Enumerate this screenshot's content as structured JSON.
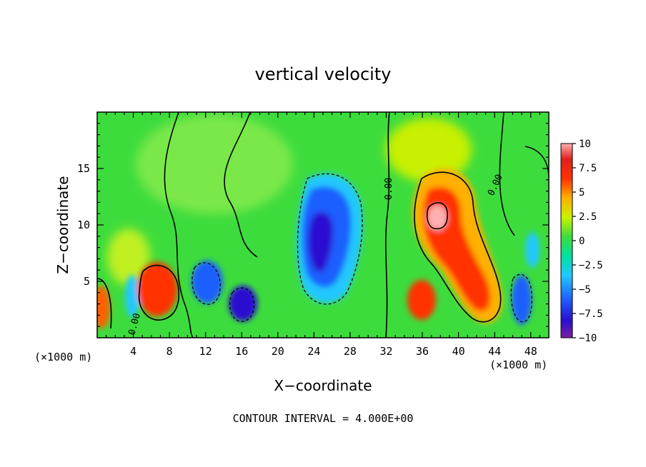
{
  "chart_data": {
    "type": "heatmap",
    "title": "vertical velocity",
    "xlabel": "X−coordinate",
    "ylabel": "Z−coordinate",
    "x_unit_left": "(×1000 m)",
    "x_unit_right": "(×1000 m)",
    "xlim": [
      0,
      50
    ],
    "ylim": [
      0,
      20
    ],
    "x_ticks": [
      "4",
      "8",
      "12",
      "16",
      "20",
      "24",
      "28",
      "32",
      "36",
      "40",
      "44",
      "48"
    ],
    "x_tick_values": [
      4,
      8,
      12,
      16,
      20,
      24,
      28,
      32,
      36,
      40,
      44,
      48
    ],
    "y_ticks": [
      "5",
      "10",
      "15"
    ],
    "y_tick_values": [
      5,
      10,
      15
    ],
    "colorbar": {
      "labels": [
        "10",
        "7.5",
        "5",
        "2.5",
        "0",
        "−2.5",
        "−5",
        "−7.5",
        "−10"
      ],
      "values": [
        10,
        7.5,
        5,
        2.5,
        0,
        -2.5,
        -5,
        -7.5,
        -10
      ],
      "range": [
        -10,
        10
      ]
    },
    "contour_labels": [
      "0.00",
      "0.00",
      "0.00"
    ],
    "footer": "CONTOUR INTERVAL = 4.000E+00",
    "features": [
      {
        "x": 38,
        "z": 10.5,
        "value": 10
      },
      {
        "x": 36.5,
        "z": 9,
        "value": 7
      },
      {
        "x": 42,
        "z": 5,
        "value": 7
      },
      {
        "x": 36,
        "z": 3,
        "value": 6
      },
      {
        "x": 6.5,
        "z": 3.5,
        "value": 7
      },
      {
        "x": 0.5,
        "z": 3,
        "value": 5
      },
      {
        "x": 25,
        "z": 9,
        "value": -9
      },
      {
        "x": 24.5,
        "z": 6,
        "value": -7
      },
      {
        "x": 12.5,
        "z": 5,
        "value": -5
      },
      {
        "x": 16,
        "z": 3,
        "value": -6
      },
      {
        "x": 46,
        "z": 4,
        "value": -5
      },
      {
        "x": 4,
        "z": 3,
        "value": -4
      }
    ]
  }
}
